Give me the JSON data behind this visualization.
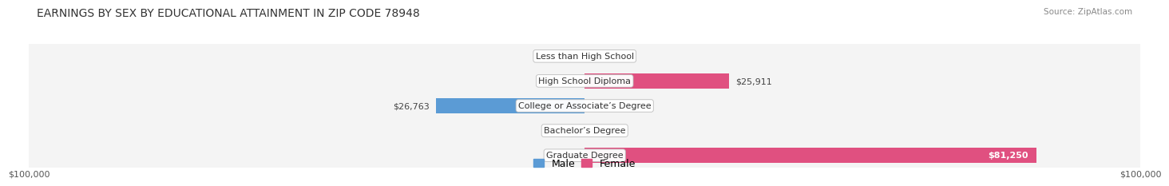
{
  "title": "EARNINGS BY SEX BY EDUCATIONAL ATTAINMENT IN ZIP CODE 78948",
  "source": "Source: ZipAtlas.com",
  "categories": [
    "Less than High School",
    "High School Diploma",
    "College or Associate’s Degree",
    "Bachelor’s Degree",
    "Graduate Degree"
  ],
  "male_values": [
    0,
    0,
    26763,
    0,
    0
  ],
  "female_values": [
    0,
    25911,
    0,
    0,
    81250
  ],
  "max_value": 100000,
  "male_light_color": "#aac9e8",
  "male_dark_color": "#5b9bd5",
  "female_light_color": "#f4a0bc",
  "female_dark_color": "#e05080",
  "bg_row_color": "#e8e8e8",
  "title_fontsize": 10,
  "label_fontsize": 8,
  "tick_fontsize": 8,
  "legend_fontsize": 9,
  "bar_height": 0.6
}
